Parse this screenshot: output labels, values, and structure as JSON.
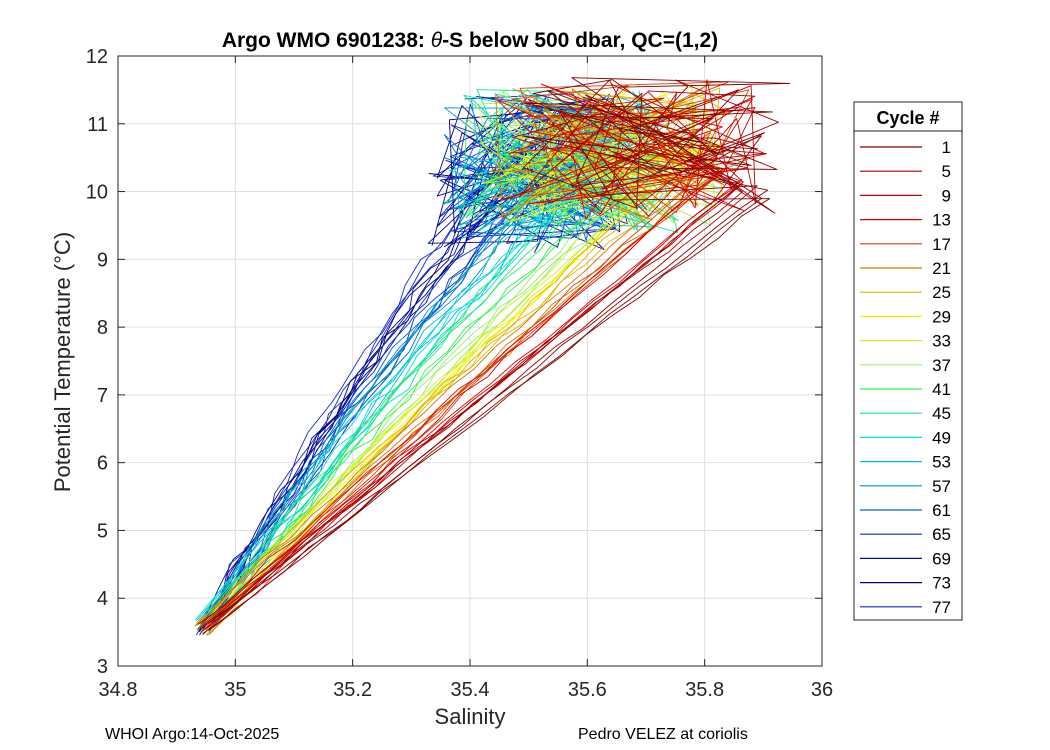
{
  "chart_data": {
    "type": "line",
    "title_parts": {
      "prefix": "Argo WMO 6901238: ",
      "theta": "θ",
      "suffix": "-S below 500 dbar,  QC=(1,2)"
    },
    "xlabel": "Salinity",
    "ylabel": "Potential Temperature (°C)",
    "xlim": [
      34.8,
      36
    ],
    "ylim": [
      3,
      12
    ],
    "x_ticks": [
      "34.8",
      "35",
      "35.2",
      "35.4",
      "35.6",
      "35.8",
      "36"
    ],
    "y_ticks": [
      "3",
      "4",
      "5",
      "6",
      "7",
      "8",
      "9",
      "10",
      "11",
      "12"
    ],
    "grid": true,
    "legend": {
      "title": "Cycle #",
      "position": "outside-right",
      "entries": [
        {
          "label": "1",
          "color": "#800000"
        },
        {
          "label": "5",
          "color": "#a00000"
        },
        {
          "label": "9",
          "color": "#c00000"
        },
        {
          "label": "13",
          "color": "#e00000"
        },
        {
          "label": "17",
          "color": "#e03a00"
        },
        {
          "label": "21",
          "color": "#cc7a00"
        },
        {
          "label": "25",
          "color": "#e0b000"
        },
        {
          "label": "29",
          "color": "#f2f200"
        },
        {
          "label": "33",
          "color": "#c8f032"
        },
        {
          "label": "37",
          "color": "#96f064"
        },
        {
          "label": "41",
          "color": "#32f050"
        },
        {
          "label": "45",
          "color": "#14e89a"
        },
        {
          "label": "49",
          "color": "#00dcdc"
        },
        {
          "label": "53",
          "color": "#00bcd8"
        },
        {
          "label": "57",
          "color": "#0096c8"
        },
        {
          "label": "61",
          "color": "#0064dc"
        },
        {
          "label": "65",
          "color": "#0032c8"
        },
        {
          "label": "69",
          "color": "#0010a0"
        },
        {
          "label": "73",
          "color": "#000080"
        },
        {
          "label": "77",
          "color": "#1428c8"
        }
      ]
    },
    "series_shape": {
      "deep_point": [
        34.93,
        3.45
      ],
      "lower_branch_endpoint": [
        35.9,
        10.0
      ],
      "upper_branch_endpoint": [
        35.54,
        11.3
      ],
      "cap_region": {
        "s": [
          35.3,
          35.95
        ],
        "t": [
          9.1,
          11.7
        ]
      }
    }
  },
  "footer": {
    "left": "WHOI Argo:14-Oct-2025",
    "right": "Pedro VELEZ at coriolis"
  }
}
